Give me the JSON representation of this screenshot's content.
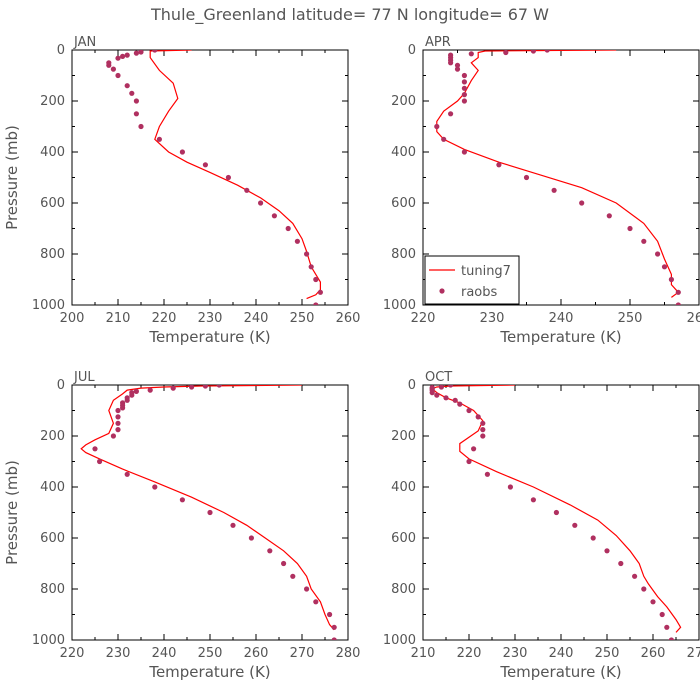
{
  "title": "Thule_Greenland  latitude= 77 N longitude= 67 W",
  "colors": {
    "model": "#ff0000",
    "obs": "#b03060",
    "axis": "#000000",
    "text": "#555555"
  },
  "legend": {
    "model_label": "tuning7",
    "obs_label": "raobs",
    "panel": "APR"
  },
  "chart_data": [
    {
      "type": "line+scatter",
      "panel": "JAN",
      "xlabel": "Temperature (K)",
      "ylabel": "Pressure (mb)",
      "xlim": [
        200,
        260
      ],
      "ylim": [
        1000,
        0
      ],
      "xticks": [
        200,
        210,
        220,
        230,
        240,
        250,
        260
      ],
      "yticks": [
        0,
        200,
        400,
        600,
        800,
        1000
      ],
      "series": [
        {
          "name": "tuning7",
          "kind": "line",
          "points": [
            [
              226,
              0
            ],
            [
              217,
              4
            ],
            [
              217,
              10
            ],
            [
              217,
              30
            ],
            [
              219,
              80
            ],
            [
              222,
              130
            ],
            [
              223,
              190
            ],
            [
              221,
              240
            ],
            [
              219,
              300
            ],
            [
              218,
              350
            ],
            [
              221,
              400
            ],
            [
              225,
              440
            ],
            [
              230,
              480
            ],
            [
              236,
              530
            ],
            [
              241,
              580
            ],
            [
              245,
              630
            ],
            [
              248,
              680
            ],
            [
              250,
              740
            ],
            [
              251,
              790
            ],
            [
              252,
              850
            ],
            [
              253,
              880
            ],
            [
              254,
              910
            ],
            [
              254,
              940
            ],
            [
              253,
              960
            ],
            [
              251,
              975
            ]
          ]
        },
        {
          "name": "raobs",
          "kind": "scatter",
          "points": [
            [
              218,
              0
            ],
            [
              215,
              8
            ],
            [
              214,
              12
            ],
            [
              212,
              20
            ],
            [
              211,
              25
            ],
            [
              210,
              32
            ],
            [
              208,
              50
            ],
            [
              208,
              60
            ],
            [
              209,
              75
            ],
            [
              210,
              100
            ],
            [
              212,
              140
            ],
            [
              213,
              170
            ],
            [
              214,
              200
            ],
            [
              214,
              250
            ],
            [
              215,
              300
            ],
            [
              219,
              350
            ],
            [
              224,
              400
            ],
            [
              229,
              450
            ],
            [
              234,
              500
            ],
            [
              238,
              550
            ],
            [
              241,
              600
            ],
            [
              244,
              650
            ],
            [
              247,
              700
            ],
            [
              249,
              750
            ],
            [
              251,
              800
            ],
            [
              252,
              850
            ],
            [
              253,
              900
            ],
            [
              254,
              950
            ],
            [
              253,
              1000
            ]
          ]
        }
      ]
    },
    {
      "type": "line+scatter",
      "panel": "APR",
      "xlabel": "Temperature (K)",
      "ylabel": "",
      "xlim": [
        220,
        260
      ],
      "ylim": [
        1000,
        0
      ],
      "xticks": [
        220,
        230,
        240,
        250,
        260
      ],
      "yticks": [
        0,
        200,
        400,
        600,
        800,
        1000
      ],
      "series": [
        {
          "name": "tuning7",
          "kind": "line",
          "points": [
            [
              248,
              0
            ],
            [
              229,
              4
            ],
            [
              228,
              10
            ],
            [
              228,
              30
            ],
            [
              227,
              50
            ],
            [
              228,
              80
            ],
            [
              227,
              120
            ],
            [
              226,
              170
            ],
            [
              225,
              200
            ],
            [
              223,
              240
            ],
            [
              222,
              280
            ],
            [
              222,
              320
            ],
            [
              223,
              350
            ],
            [
              226,
              390
            ],
            [
              231,
              440
            ],
            [
              237,
              490
            ],
            [
              243,
              540
            ],
            [
              248,
              600
            ],
            [
              252,
              680
            ],
            [
              254,
              750
            ],
            [
              255,
              820
            ],
            [
              256,
              880
            ],
            [
              256,
              920
            ],
            [
              257,
              950
            ],
            [
              256,
              970
            ]
          ]
        },
        {
          "name": "raobs",
          "kind": "scatter",
          "points": [
            [
              238,
              0
            ],
            [
              236,
              4
            ],
            [
              232,
              10
            ],
            [
              227,
              15
            ],
            [
              224,
              20
            ],
            [
              224,
              30
            ],
            [
              224,
              40
            ],
            [
              224,
              50
            ],
            [
              225,
              60
            ],
            [
              225,
              75
            ],
            [
              226,
              100
            ],
            [
              226,
              125
            ],
            [
              226,
              150
            ],
            [
              226,
              175
            ],
            [
              226,
              200
            ],
            [
              224,
              250
            ],
            [
              222,
              300
            ],
            [
              223,
              350
            ],
            [
              226,
              400
            ],
            [
              231,
              450
            ],
            [
              235,
              500
            ],
            [
              239,
              550
            ],
            [
              243,
              600
            ],
            [
              247,
              650
            ],
            [
              250,
              700
            ],
            [
              252,
              750
            ],
            [
              254,
              800
            ],
            [
              255,
              850
            ],
            [
              256,
              900
            ],
            [
              257,
              950
            ],
            [
              257,
              1000
            ]
          ]
        }
      ]
    },
    {
      "type": "line+scatter",
      "panel": "JUL",
      "xlabel": "Temperature (K)",
      "ylabel": "Pressure (mb)",
      "xlim": [
        220,
        280
      ],
      "ylim": [
        1000,
        0
      ],
      "xticks": [
        220,
        230,
        240,
        250,
        260,
        270,
        280
      ],
      "yticks": [
        0,
        200,
        400,
        600,
        800,
        1000
      ],
      "series": [
        {
          "name": "tuning7",
          "kind": "line",
          "points": [
            [
              270,
              0
            ],
            [
              248,
              4
            ],
            [
              240,
              8
            ],
            [
              235,
              12
            ],
            [
              232,
              20
            ],
            [
              231,
              35
            ],
            [
              229,
              60
            ],
            [
              228,
              100
            ],
            [
              229,
              150
            ],
            [
              228,
              190
            ],
            [
              225,
              215
            ],
            [
              223,
              235
            ],
            [
              222,
              250
            ],
            [
              223,
              265
            ],
            [
              226,
              290
            ],
            [
              231,
              330
            ],
            [
              238,
              380
            ],
            [
              246,
              440
            ],
            [
              253,
              500
            ],
            [
              258,
              550
            ],
            [
              262,
              600
            ],
            [
              266,
              650
            ],
            [
              269,
              700
            ],
            [
              271,
              750
            ],
            [
              272,
              800
            ],
            [
              274,
              850
            ],
            [
              275,
              900
            ],
            [
              276,
              940
            ],
            [
              277,
              960
            ]
          ]
        },
        {
          "name": "raobs",
          "kind": "scatter",
          "points": [
            [
              252,
              0
            ],
            [
              249,
              4
            ],
            [
              246,
              8
            ],
            [
              242,
              12
            ],
            [
              237,
              20
            ],
            [
              234,
              25
            ],
            [
              233,
              30
            ],
            [
              233,
              40
            ],
            [
              232,
              50
            ],
            [
              232,
              60
            ],
            [
              231,
              70
            ],
            [
              231,
              80
            ],
            [
              231,
              90
            ],
            [
              230,
              100
            ],
            [
              230,
              125
            ],
            [
              230,
              150
            ],
            [
              230,
              175
            ],
            [
              229,
              200
            ],
            [
              225,
              250
            ],
            [
              226,
              300
            ],
            [
              232,
              350
            ],
            [
              238,
              400
            ],
            [
              244,
              450
            ],
            [
              250,
              500
            ],
            [
              255,
              550
            ],
            [
              259,
              600
            ],
            [
              263,
              650
            ],
            [
              266,
              700
            ],
            [
              268,
              750
            ],
            [
              271,
              800
            ],
            [
              273,
              850
            ],
            [
              276,
              900
            ],
            [
              277,
              950
            ],
            [
              277,
              1000
            ]
          ]
        }
      ]
    },
    {
      "type": "line+scatter",
      "panel": "OCT",
      "xlabel": "Temperature (K)",
      "ylabel": "",
      "xlim": [
        210,
        270
      ],
      "ylim": [
        1000,
        0
      ],
      "xticks": [
        210,
        220,
        230,
        240,
        250,
        260,
        270
      ],
      "yticks": [
        0,
        200,
        400,
        600,
        800,
        1000
      ],
      "series": [
        {
          "name": "tuning7",
          "kind": "line",
          "points": [
            [
              230,
              0
            ],
            [
              216,
              4
            ],
            [
              213,
              8
            ],
            [
              212,
              15
            ],
            [
              213,
              30
            ],
            [
              215,
              50
            ],
            [
              218,
              70
            ],
            [
              221,
              100
            ],
            [
              223,
              140
            ],
            [
              222,
              180
            ],
            [
              218,
              230
            ],
            [
              218,
              260
            ],
            [
              220,
              290
            ],
            [
              226,
              340
            ],
            [
              234,
              400
            ],
            [
              242,
              470
            ],
            [
              248,
              530
            ],
            [
              252,
              590
            ],
            [
              255,
              650
            ],
            [
              257,
              700
            ],
            [
              258,
              750
            ],
            [
              259,
              780
            ],
            [
              261,
              830
            ],
            [
              263,
              870
            ],
            [
              265,
              920
            ],
            [
              266,
              950
            ],
            [
              265,
              970
            ]
          ]
        },
        {
          "name": "raobs",
          "kind": "scatter",
          "points": [
            [
              216,
              0
            ],
            [
              214,
              8
            ],
            [
              212,
              10
            ],
            [
              212,
              15
            ],
            [
              212,
              20
            ],
            [
              212,
              30
            ],
            [
              213,
              40
            ],
            [
              215,
              50
            ],
            [
              217,
              60
            ],
            [
              218,
              75
            ],
            [
              220,
              100
            ],
            [
              222,
              125
            ],
            [
              223,
              150
            ],
            [
              223,
              175
            ],
            [
              223,
              200
            ],
            [
              221,
              250
            ],
            [
              220,
              300
            ],
            [
              224,
              350
            ],
            [
              229,
              400
            ],
            [
              234,
              450
            ],
            [
              239,
              500
            ],
            [
              243,
              550
            ],
            [
              247,
              600
            ],
            [
              250,
              650
            ],
            [
              253,
              700
            ],
            [
              256,
              750
            ],
            [
              258,
              800
            ],
            [
              260,
              850
            ],
            [
              262,
              900
            ],
            [
              263,
              950
            ],
            [
              264,
              1000
            ]
          ]
        }
      ]
    }
  ]
}
